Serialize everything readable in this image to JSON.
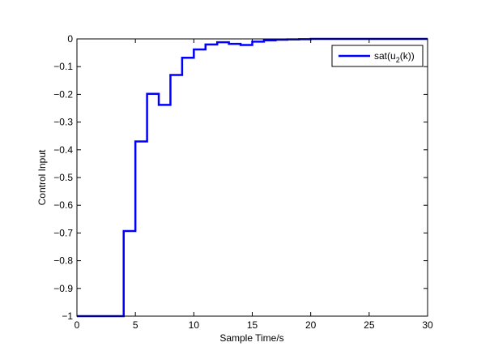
{
  "chart_data": {
    "type": "line",
    "step": "post",
    "title": "",
    "xlabel": "Sample Time/s",
    "ylabel": "Control Input",
    "xlim": [
      0,
      30
    ],
    "ylim": [
      -1,
      0
    ],
    "xticks": [
      0,
      5,
      10,
      15,
      20,
      25,
      30
    ],
    "xtick_labels": [
      "0",
      "5",
      "10",
      "15",
      "20",
      "25",
      "30"
    ],
    "yticks": [
      0,
      -0.1,
      -0.2,
      -0.3,
      -0.4,
      -0.5,
      -0.6,
      -0.7,
      -0.8,
      -0.9,
      -1
    ],
    "ytick_labels": [
      "0",
      "−0.1",
      "−0.2",
      "−0.3",
      "−0.4",
      "−0.5",
      "−0.6",
      "−0.7",
      "−0.8",
      "−0.9",
      "−1"
    ],
    "grid": false,
    "legend_position": "top-right",
    "series": [
      {
        "name_main": "sat(u",
        "name_sub": "2",
        "name_tail": "(k))",
        "color": "#0000ff",
        "x": [
          0,
          1,
          2,
          3,
          4,
          5,
          6,
          7,
          8,
          9,
          10,
          11,
          12,
          13,
          14,
          15,
          16,
          17,
          18,
          19,
          20,
          21,
          22,
          23,
          24,
          25,
          26,
          27,
          28,
          29,
          30
        ],
        "y": [
          -1,
          -1,
          -1,
          -1,
          -0.693,
          -0.37,
          -0.198,
          -0.238,
          -0.13,
          -0.068,
          -0.038,
          -0.02,
          -0.012,
          -0.018,
          -0.022,
          -0.01,
          -0.005,
          -0.003,
          -0.002,
          -0.001,
          0,
          0,
          0,
          0,
          0,
          0,
          0,
          0,
          0,
          0,
          0
        ]
      }
    ]
  }
}
